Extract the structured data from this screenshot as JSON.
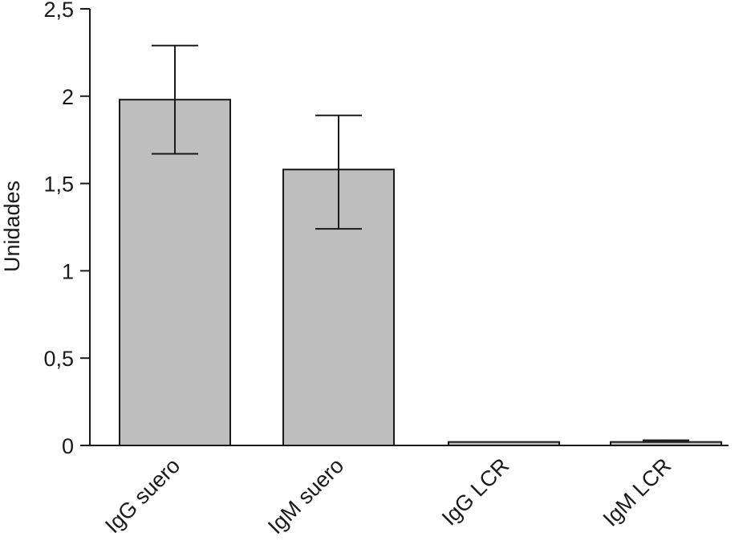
{
  "chart_data": {
    "type": "bar",
    "title": "",
    "xlabel": "",
    "ylabel": "Unidades",
    "ylim": [
      0,
      2.5
    ],
    "yticks": [
      0,
      0.5,
      1,
      1.5,
      2,
      2.5
    ],
    "ytick_labels": [
      "0",
      "0,5",
      "1",
      "1,5",
      "2",
      "2,5"
    ],
    "categories": [
      "IgG suero",
      "IgM suero",
      "IgG LCR",
      "IgM LCR"
    ],
    "values": [
      1.98,
      1.58,
      0.02,
      0.02
    ],
    "error_upper": [
      2.29,
      1.89,
      null,
      0.03
    ],
    "error_lower": [
      1.67,
      1.24,
      null,
      0.02
    ],
    "grid": false,
    "bar_color": "#bebebe",
    "axis_color": "#1a1a1a"
  }
}
